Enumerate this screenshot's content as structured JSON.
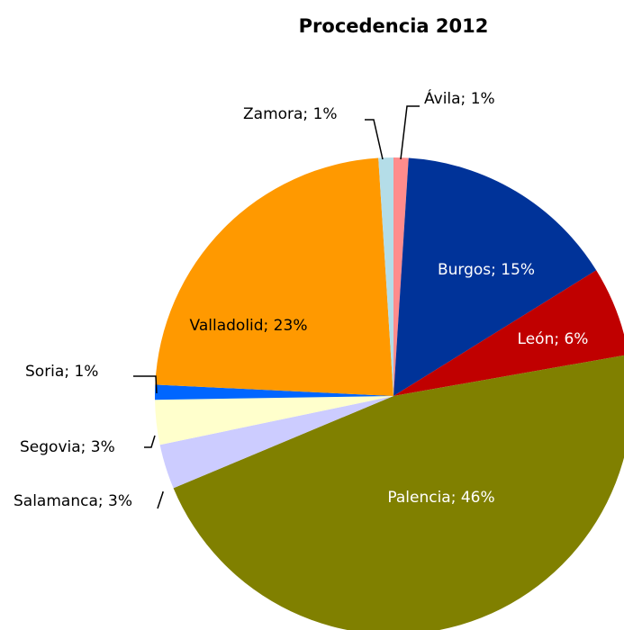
{
  "chart_data": {
    "type": "pie",
    "title": "Procedencia 2012",
    "values": [
      1,
      15,
      6,
      46,
      3,
      3,
      1,
      23,
      1
    ],
    "value_labels": [
      "Ávila; 1%",
      "Burgos; 15%",
      "León; 6%",
      "Palencia; 46%",
      "Salamanca; 3%",
      "Segovia; 3%",
      "Soria; 1%",
      "Valladolid; 23%",
      "Zamora; 1%"
    ],
    "colors": [
      "#ff8c8c",
      "#003399",
      "#c00000",
      "#808000",
      "#ccccff",
      "#ffffcc",
      "#0066ff",
      "#ff9900",
      "#b4dde8"
    ]
  }
}
